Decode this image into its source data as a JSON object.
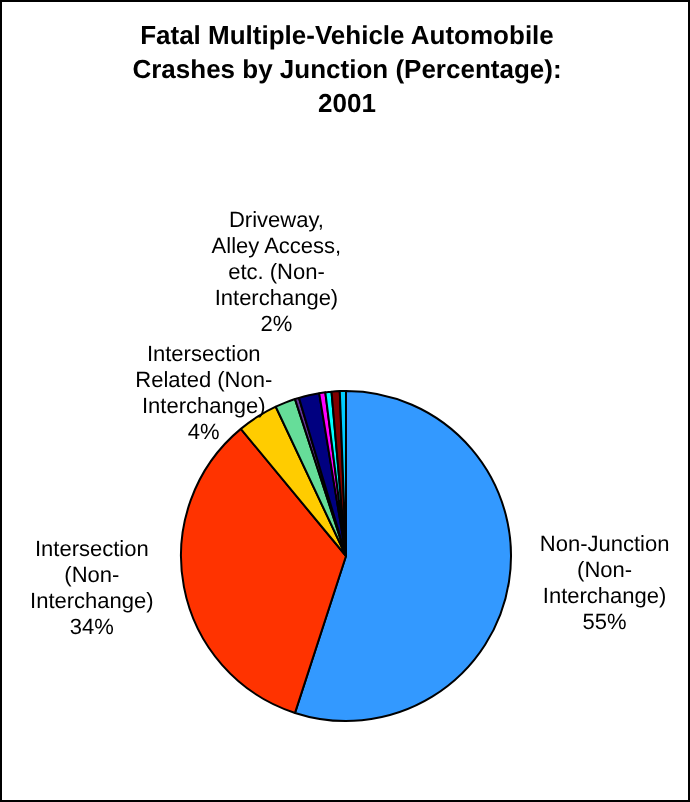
{
  "chart_data": {
    "type": "pie",
    "title": "Fatal Multiple-Vehicle Automobile Crashes by Junction (Percentage): 2001",
    "categories": [
      "Non-Junction (Non-Interchange)",
      "Intersection (Non-Interchange)",
      "Intersection Related (Non-Interchange)",
      "Driveway, Alley Access, etc. (Non-Interchange)",
      null,
      null,
      null,
      null,
      null,
      null
    ],
    "values": [
      55,
      34,
      4,
      2,
      0.4,
      2.0,
      0.6,
      0.6,
      0.8,
      0.6
    ],
    "colors": [
      "#3399ff",
      "#ff3300",
      "#ffcc00",
      "#66dd99",
      "#663399",
      "#000080",
      "#ff00ff",
      "#00ffff",
      "#800000",
      "#00ccff"
    ],
    "value_labels": [
      "55%",
      "34%",
      "4%",
      "2%",
      null,
      null,
      null,
      null,
      null,
      null
    ],
    "legend": false
  }
}
